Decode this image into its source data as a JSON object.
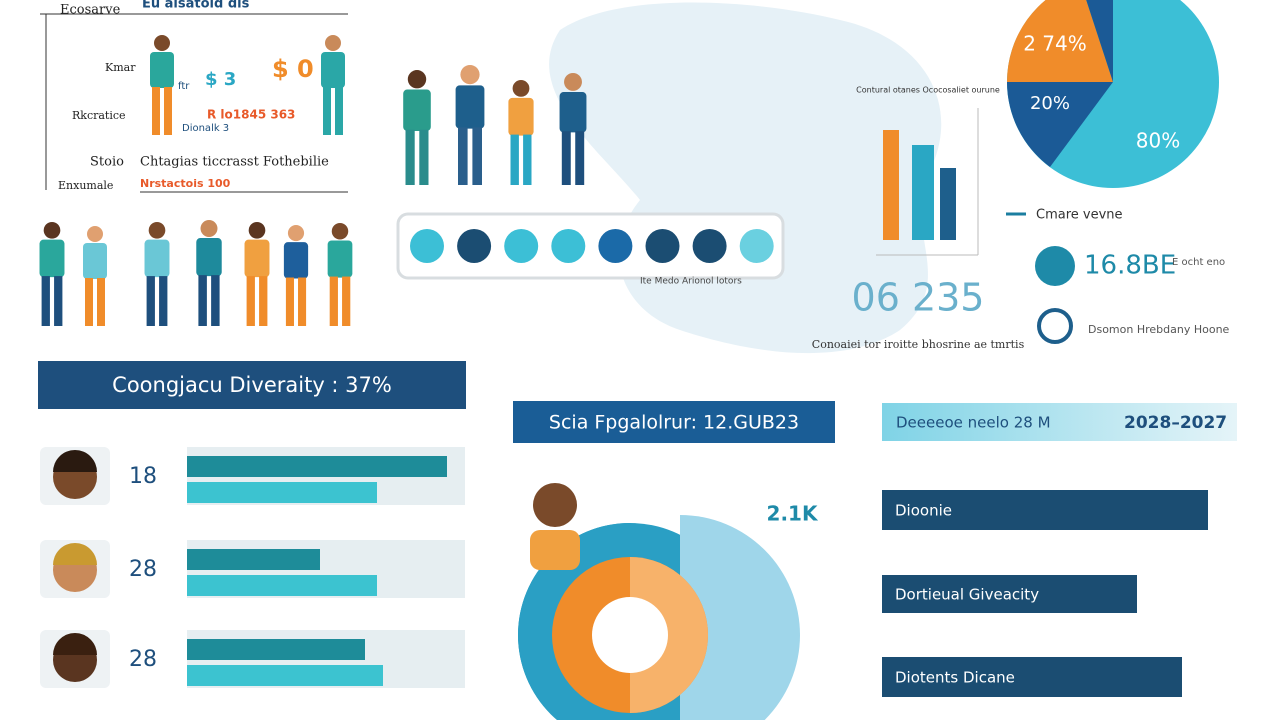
{
  "top_left": {
    "header": "Eu alsatoid dis",
    "corner": "Ecosarve",
    "labels": [
      "Kmar",
      "Rkcratice",
      "Stoio",
      "Enxumale"
    ],
    "money": [
      "$ 3",
      "$ 0"
    ],
    "small": [
      "ftr",
      "Dionalk 3"
    ],
    "red_line": "R lo1845 363",
    "line_main": "Chtagias ticcrasst Fothebilie",
    "line_red": "Nrstactois 100"
  },
  "dots_caption": "Ite Medo Arionol lotors",
  "mini_chart": {
    "title": "Contural otanes Ococosaliet ourune",
    "big_number": "06 235",
    "caption": "Conoaiei tor iroitte bhosrine ae tmrtis"
  },
  "pie_labels": [
    "2 74%",
    "20%",
    "80%"
  ],
  "legend": {
    "title": "Cmare vevne",
    "stat": "16.8BE",
    "stat_note": "E ocht eno",
    "note": "Dsomon Hrebdany Hoone"
  },
  "banners": [
    "Coongjacu Diveraity : 37%",
    "Scia Fpgalolrur: 12.GUB23",
    "Deeeeoe neelo 28 M",
    "2028–2027"
  ],
  "rows": [
    "18",
    "28",
    "28"
  ],
  "donut_label": "2.1K",
  "right_bars": [
    "Dioonie",
    "Dortieual Giveacity",
    "Diotents Dicane"
  ]
}
